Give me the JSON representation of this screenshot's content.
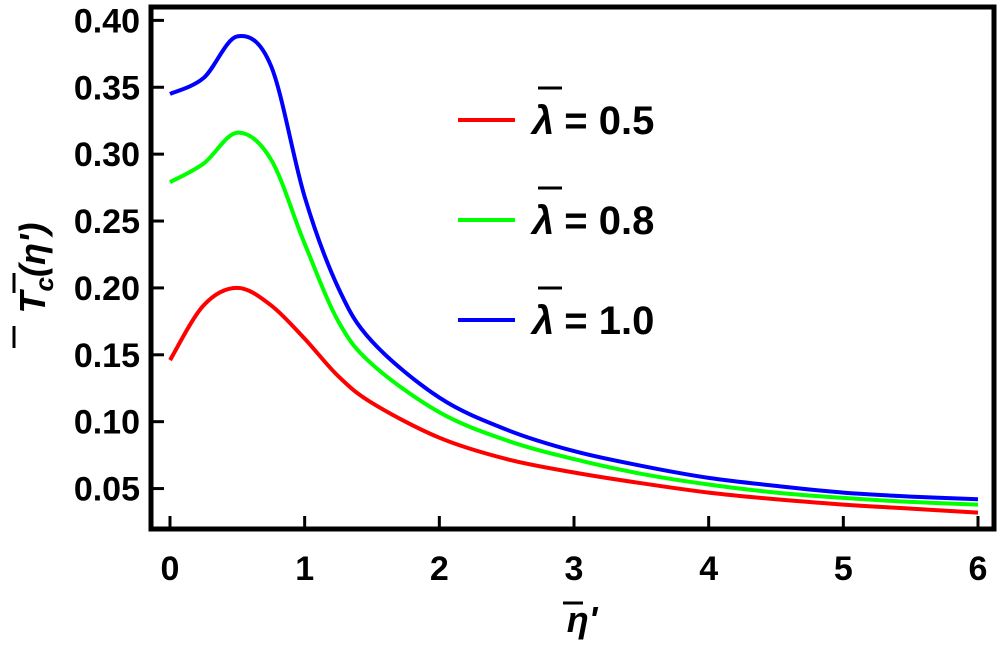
{
  "chart_data": {
    "type": "line",
    "xlabel": "η'",
    "ylabel_main": "T",
    "ylabel_sub": "c",
    "ylabel_arg": "(η')",
    "xlim": [
      0,
      6
    ],
    "ylim": [
      0.025,
      0.41
    ],
    "x_ticks": [
      0,
      1,
      2,
      3,
      4,
      5,
      6
    ],
    "x_tick_labels": [
      "0",
      "1",
      "2",
      "3",
      "4",
      "5",
      "6"
    ],
    "y_ticks": [
      0.05,
      0.1,
      0.15,
      0.2,
      0.25,
      0.3,
      0.35,
      0.4
    ],
    "y_tick_labels": [
      "0.05",
      "0.10",
      "0.15",
      "0.20",
      "0.25",
      "0.30",
      "0.35",
      "0.40"
    ],
    "legend_position": "top-right",
    "x": [
      0,
      0.25,
      0.5,
      0.75,
      1.0,
      1.25,
      1.5,
      2.0,
      2.5,
      3.0,
      3.5,
      4.0,
      4.5,
      5.0,
      5.5,
      6.0
    ],
    "series": [
      {
        "name": "λ = 0.5",
        "symbol": "λ",
        "value_text": "= 0.5",
        "color": "#ff0000",
        "values": [
          0.146,
          0.187,
          0.2,
          0.187,
          0.162,
          0.134,
          0.114,
          0.088,
          0.072,
          0.062,
          0.054,
          0.047,
          0.042,
          0.038,
          0.035,
          0.032
        ]
      },
      {
        "name": "λ = 0.8",
        "symbol": "λ",
        "value_text": "= 0.8",
        "color": "#00ff00",
        "values": [
          0.279,
          0.293,
          0.316,
          0.296,
          0.233,
          0.175,
          0.143,
          0.107,
          0.086,
          0.072,
          0.061,
          0.053,
          0.047,
          0.043,
          0.04,
          0.038
        ]
      },
      {
        "name": "λ = 1.0",
        "symbol": "λ",
        "value_text": "= 1.0",
        "color": "#0000ff",
        "values": [
          0.345,
          0.357,
          0.388,
          0.366,
          0.268,
          0.2,
          0.16,
          0.118,
          0.094,
          0.078,
          0.067,
          0.058,
          0.052,
          0.047,
          0.044,
          0.042
        ]
      }
    ]
  }
}
